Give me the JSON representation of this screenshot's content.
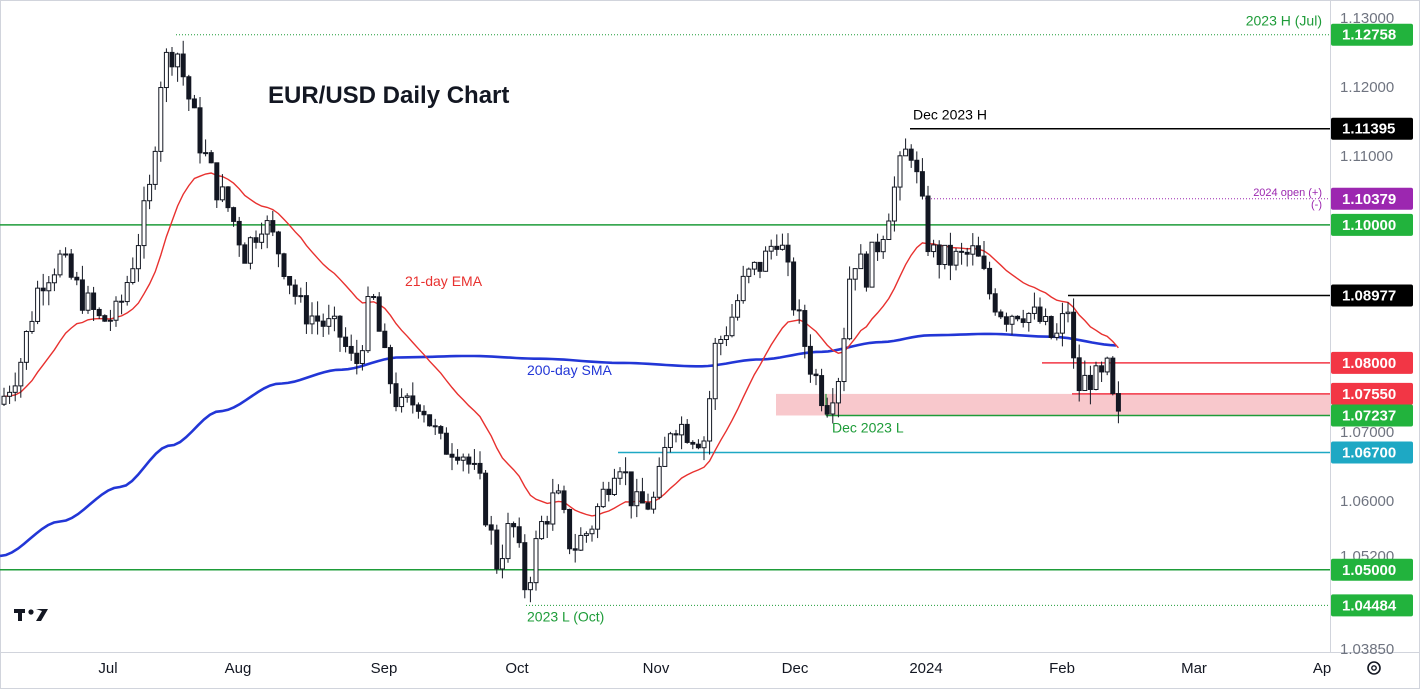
{
  "chart_data": {
    "type": "candlestick",
    "title": "EUR/USD Daily Chart",
    "x_axis": {
      "labels": [
        "Jul",
        "Aug",
        "Sep",
        "Oct",
        "Nov",
        "Dec",
        "2024",
        "Feb",
        "Mar",
        "Ap"
      ]
    },
    "y_axis": {
      "range": [
        1.035,
        1.13
      ],
      "tick_labels": [
        "1.13000",
        "1.12000",
        "1.11000",
        "1.10000",
        "1.09000",
        "1.08000",
        "1.07000",
        "1.06000",
        "1.05200",
        "1.03850"
      ],
      "tick_values": [
        1.13,
        1.12,
        1.11,
        1.1,
        1.09,
        1.08,
        1.07,
        1.06,
        1.052,
        1.0385
      ]
    },
    "indicators": [
      {
        "name": "21-day EMA",
        "color": "#e8312f"
      },
      {
        "name": "200-day SMA",
        "color": "#2236d6"
      }
    ],
    "levels": [
      {
        "value": 1.12758,
        "label": "1.12758",
        "note": "2023 H (Jul)",
        "color": "#1e9c39",
        "badge_color": "#22b33d",
        "style": "dotted"
      },
      {
        "value": 1.11395,
        "label": "1.11395",
        "note": "Dec 2023 H",
        "color": "#000000",
        "badge_color": "#000000",
        "style": "solid"
      },
      {
        "value": 1.10379,
        "label": "1.10379",
        "note": "2024 open (+)",
        "note2": "(-)",
        "color": "#9c27b0",
        "badge_color": "#9c27b0",
        "style": "dotted"
      },
      {
        "value": 1.1,
        "label": "1.10000",
        "color": "#1e9c39",
        "badge_color": "#22b33d",
        "style": "solid"
      },
      {
        "value": 1.08977,
        "label": "1.08977",
        "color": "#000000",
        "badge_color": "#000000",
        "style": "solid"
      },
      {
        "value": 1.08,
        "label": "1.08000",
        "color": "#f23645",
        "badge_color": "#f23645",
        "style": "solid"
      },
      {
        "value": 1.0755,
        "label": "1.07550",
        "color": "#f23645",
        "badge_color": "#f23645",
        "style": "solid"
      },
      {
        "value": 1.07237,
        "label": "1.07237",
        "note": "Dec 2023 L",
        "color": "#1e9c39",
        "badge_color": "#22b33d",
        "style": "solid"
      },
      {
        "value": 1.067,
        "label": "1.06700",
        "color": "#1ea8c4",
        "badge_color": "#1ea8c4",
        "style": "solid"
      },
      {
        "value": 1.05,
        "label": "1.05000",
        "color": "#1e9c39",
        "badge_color": "#22b33d",
        "style": "solid"
      },
      {
        "value": 1.04484,
        "label": "1.04484",
        "note": "2023 L (Oct)",
        "color": "#1e9c39",
        "badge_color": "#22b33d",
        "style": "dotted"
      }
    ],
    "zone": {
      "from": 1.07237,
      "to": 1.0755,
      "color": "#f8c8cc"
    },
    "annotations": {
      "ema": "21-day EMA",
      "sma": "200-day SMA"
    }
  },
  "branding": {
    "logo": "tradingview-logo"
  },
  "controls": {
    "settings": "gear-icon"
  }
}
